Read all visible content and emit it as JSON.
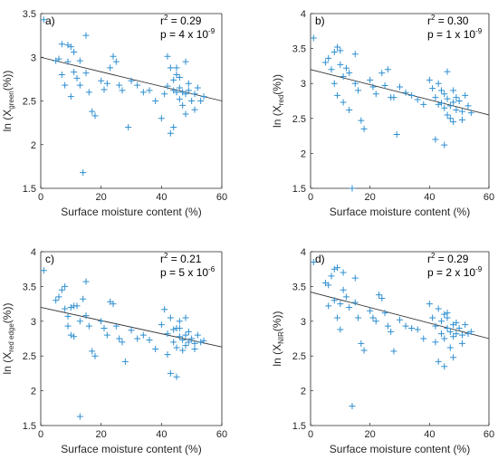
{
  "colors": {
    "marker": "#2f8fd0",
    "fit": "#333333",
    "axis": "#262626"
  },
  "chart_data": [
    {
      "type": "scatter",
      "panel_label": "a)",
      "xlabel": "Surface moisture content (%)",
      "ylabel_main": "ln (X",
      "ylabel_sub": "green",
      "ylabel_tail": "(%))",
      "xlim": [
        0,
        60
      ],
      "ylim": [
        1.5,
        3.5
      ],
      "xticks": [
        "0",
        "20",
        "40",
        "60"
      ],
      "yticks": [
        "1.5",
        "2",
        "2.5",
        "3",
        "3.5"
      ],
      "r2_label": "r",
      "r2_sup": "2",
      "r2_value": " = 0.29",
      "p_label": "p = 4 x 10",
      "p_exp": "-9",
      "fit": [
        [
          0,
          3.0
        ],
        [
          60,
          2.5
        ]
      ],
      "points": [
        [
          1,
          3.43
        ],
        [
          5,
          2.96
        ],
        [
          6,
          2.98
        ],
        [
          7,
          3.15
        ],
        [
          7,
          2.8
        ],
        [
          8,
          2.68
        ],
        [
          9,
          3.14
        ],
        [
          9,
          2.95
        ],
        [
          10,
          3.12
        ],
        [
          10,
          2.55
        ],
        [
          11,
          3.06
        ],
        [
          11,
          2.83
        ],
        [
          12,
          2.76
        ],
        [
          13,
          2.96
        ],
        [
          13,
          2.68
        ],
        [
          14,
          1.68
        ],
        [
          15,
          3.25
        ],
        [
          15,
          2.82
        ],
        [
          16,
          2.6
        ],
        [
          17,
          2.38
        ],
        [
          18,
          2.33
        ],
        [
          20,
          2.73
        ],
        [
          21,
          2.63
        ],
        [
          22,
          2.7
        ],
        [
          23,
          2.88
        ],
        [
          24,
          3.01
        ],
        [
          25,
          2.95
        ],
        [
          26,
          2.68
        ],
        [
          27,
          2.62
        ],
        [
          29,
          2.2
        ],
        [
          30,
          2.73
        ],
        [
          32,
          2.68
        ],
        [
          34,
          2.6
        ],
        [
          36,
          2.62
        ],
        [
          38,
          2.5
        ],
        [
          40,
          2.3
        ],
        [
          41,
          2.58
        ],
        [
          42,
          2.67
        ],
        [
          42,
          3.01
        ],
        [
          43,
          2.88
        ],
        [
          43,
          2.13
        ],
        [
          44,
          2.62
        ],
        [
          44,
          2.74
        ],
        [
          44,
          2.2
        ],
        [
          45,
          2.88
        ],
        [
          45,
          2.6
        ],
        [
          45,
          2.8
        ],
        [
          46,
          2.52
        ],
        [
          46,
          2.77
        ],
        [
          46,
          2.65
        ],
        [
          47,
          2.45
        ],
        [
          47,
          2.6
        ],
        [
          48,
          2.58
        ],
        [
          48,
          2.95
        ],
        [
          48,
          2.35
        ],
        [
          49,
          2.62
        ],
        [
          49,
          2.7
        ],
        [
          50,
          2.5
        ],
        [
          51,
          2.58
        ],
        [
          51,
          2.4
        ],
        [
          52,
          2.65
        ],
        [
          53,
          2.5
        ],
        [
          54,
          2.55
        ]
      ]
    },
    {
      "type": "scatter",
      "panel_label": "b)",
      "xlabel": "Surface moisture content (%)",
      "ylabel_main": "ln (X",
      "ylabel_sub": "red",
      "ylabel_tail": "(%))",
      "xlim": [
        0,
        60
      ],
      "ylim": [
        1.5,
        4.0
      ],
      "xticks": [
        "0",
        "20",
        "40",
        "60"
      ],
      "yticks": [
        "1.5",
        "2",
        "2.5",
        "3",
        "3.5",
        "4"
      ],
      "r2_label": "r",
      "r2_sup": "2",
      "r2_value": " = 0.30",
      "p_label": "p = 1 x 10",
      "p_exp": "-9",
      "fit": [
        [
          0,
          3.2
        ],
        [
          60,
          2.55
        ]
      ],
      "points": [
        [
          1,
          3.65
        ],
        [
          5,
          3.3
        ],
        [
          6,
          3.36
        ],
        [
          7,
          3.2
        ],
        [
          8,
          3.45
        ],
        [
          8,
          3.0
        ],
        [
          9,
          3.52
        ],
        [
          9,
          2.83
        ],
        [
          10,
          3.47
        ],
        [
          10,
          3.27
        ],
        [
          11,
          2.73
        ],
        [
          11,
          3.1
        ],
        [
          12,
          3.22
        ],
        [
          13,
          3.15
        ],
        [
          13,
          2.62
        ],
        [
          14,
          1.5
        ],
        [
          15,
          3.42
        ],
        [
          15,
          3.0
        ],
        [
          16,
          2.9
        ],
        [
          17,
          2.47
        ],
        [
          18,
          2.35
        ],
        [
          20,
          3.05
        ],
        [
          21,
          2.95
        ],
        [
          22,
          2.85
        ],
        [
          24,
          3.15
        ],
        [
          25,
          2.97
        ],
        [
          26,
          3.2
        ],
        [
          27,
          2.8
        ],
        [
          28,
          2.8
        ],
        [
          29,
          2.27
        ],
        [
          30,
          2.95
        ],
        [
          32,
          2.87
        ],
        [
          34,
          2.83
        ],
        [
          36,
          2.77
        ],
        [
          38,
          2.7
        ],
        [
          40,
          3.05
        ],
        [
          41,
          2.93
        ],
        [
          42,
          2.2
        ],
        [
          42,
          2.8
        ],
        [
          43,
          2.7
        ],
        [
          43,
          3.0
        ],
        [
          44,
          2.72
        ],
        [
          44,
          2.9
        ],
        [
          45,
          2.12
        ],
        [
          45,
          2.65
        ],
        [
          45,
          2.85
        ],
        [
          46,
          3.17
        ],
        [
          46,
          2.78
        ],
        [
          46,
          2.55
        ],
        [
          47,
          2.68
        ],
        [
          47,
          2.5
        ],
        [
          48,
          2.9
        ],
        [
          48,
          2.73
        ],
        [
          48,
          2.45
        ],
        [
          49,
          2.62
        ],
        [
          49,
          2.8
        ],
        [
          50,
          2.75
        ],
        [
          51,
          2.6
        ],
        [
          51,
          2.48
        ],
        [
          52,
          2.83
        ],
        [
          53,
          2.68
        ],
        [
          54,
          2.58
        ]
      ]
    },
    {
      "type": "scatter",
      "panel_label": "c)",
      "xlabel": "Surface moisture content (%)",
      "ylabel_main": "ln (X",
      "ylabel_sub": "red edge",
      "ylabel_tail": "(%))",
      "xlim": [
        0,
        60
      ],
      "ylim": [
        1.5,
        4.0
      ],
      "xticks": [
        "0",
        "20",
        "40",
        "60"
      ],
      "yticks": [
        "1.5",
        "2",
        "2.5",
        "3",
        "3.5",
        "4"
      ],
      "r2_label": "r",
      "r2_sup": "2",
      "r2_value": " = 0.21",
      "p_label": "p = 5 x 10",
      "p_exp": "-6",
      "fit": [
        [
          0,
          3.2
        ],
        [
          60,
          2.63
        ]
      ],
      "points": [
        [
          1,
          3.73
        ],
        [
          5,
          3.3
        ],
        [
          6,
          3.35
        ],
        [
          7,
          3.45
        ],
        [
          8,
          3.5
        ],
        [
          8,
          3.18
        ],
        [
          9,
          3.07
        ],
        [
          9,
          2.93
        ],
        [
          10,
          2.8
        ],
        [
          10,
          3.2
        ],
        [
          11,
          3.22
        ],
        [
          11,
          2.78
        ],
        [
          12,
          3.22
        ],
        [
          13,
          3.0
        ],
        [
          13,
          1.63
        ],
        [
          14,
          3.32
        ],
        [
          15,
          3.57
        ],
        [
          15,
          3.08
        ],
        [
          16,
          2.93
        ],
        [
          17,
          2.57
        ],
        [
          18,
          2.5
        ],
        [
          20,
          3.0
        ],
        [
          21,
          2.9
        ],
        [
          22,
          2.8
        ],
        [
          23,
          3.28
        ],
        [
          24,
          3.25
        ],
        [
          25,
          2.93
        ],
        [
          26,
          2.75
        ],
        [
          27,
          2.7
        ],
        [
          28,
          2.42
        ],
        [
          30,
          2.87
        ],
        [
          32,
          2.75
        ],
        [
          34,
          2.8
        ],
        [
          36,
          2.73
        ],
        [
          38,
          2.6
        ],
        [
          40,
          2.95
        ],
        [
          41,
          3.17
        ],
        [
          42,
          2.52
        ],
        [
          42,
          2.82
        ],
        [
          43,
          3.05
        ],
        [
          43,
          2.25
        ],
        [
          44,
          2.7
        ],
        [
          44,
          2.88
        ],
        [
          45,
          2.2
        ],
        [
          45,
          2.9
        ],
        [
          45,
          2.62
        ],
        [
          46,
          3.0
        ],
        [
          46,
          2.78
        ],
        [
          46,
          2.9
        ],
        [
          47,
          2.73
        ],
        [
          47,
          2.58
        ],
        [
          48,
          2.8
        ],
        [
          48,
          2.65
        ],
        [
          48,
          3.05
        ],
        [
          49,
          2.7
        ],
        [
          49,
          2.85
        ],
        [
          50,
          2.75
        ],
        [
          51,
          2.68
        ],
        [
          51,
          2.6
        ],
        [
          52,
          2.8
        ],
        [
          53,
          2.7
        ],
        [
          54,
          2.72
        ]
      ]
    },
    {
      "type": "scatter",
      "panel_label": "d)",
      "xlabel": "Surface moisture content (%)",
      "ylabel_main": "ln (X",
      "ylabel_sub": "NIR",
      "ylabel_tail": "(%))",
      "xlim": [
        0,
        60
      ],
      "ylim": [
        1.5,
        4.0
      ],
      "xticks": [
        "0",
        "20",
        "40",
        "60"
      ],
      "yticks": [
        "1.5",
        "2",
        "2.5",
        "3",
        "3.5",
        "4"
      ],
      "r2_label": "r",
      "r2_sup": "2",
      "r2_value": " = 0.29",
      "p_label": "p = 2 x 10",
      "p_exp": "-9",
      "fit": [
        [
          0,
          3.42
        ],
        [
          60,
          2.75
        ]
      ],
      "points": [
        [
          1,
          3.85
        ],
        [
          5,
          3.55
        ],
        [
          6,
          3.52
        ],
        [
          6,
          3.22
        ],
        [
          7,
          3.65
        ],
        [
          8,
          3.75
        ],
        [
          8,
          3.3
        ],
        [
          9,
          3.77
        ],
        [
          9,
          3.05
        ],
        [
          10,
          2.88
        ],
        [
          10,
          3.25
        ],
        [
          11,
          3.7
        ],
        [
          11,
          3.45
        ],
        [
          12,
          3.35
        ],
        [
          13,
          3.2
        ],
        [
          14,
          1.78
        ],
        [
          15,
          3.62
        ],
        [
          15,
          3.27
        ],
        [
          16,
          3.05
        ],
        [
          17,
          2.68
        ],
        [
          18,
          2.58
        ],
        [
          20,
          3.15
        ],
        [
          21,
          3.05
        ],
        [
          22,
          3.0
        ],
        [
          23,
          3.38
        ],
        [
          24,
          3.33
        ],
        [
          25,
          3.12
        ],
        [
          26,
          2.93
        ],
        [
          27,
          2.85
        ],
        [
          28,
          2.57
        ],
        [
          30,
          3.02
        ],
        [
          32,
          2.93
        ],
        [
          34,
          2.9
        ],
        [
          36,
          2.88
        ],
        [
          38,
          2.75
        ],
        [
          40,
          3.25
        ],
        [
          41,
          3.05
        ],
        [
          42,
          2.7
        ],
        [
          42,
          2.93
        ],
        [
          43,
          3.18
        ],
        [
          43,
          2.42
        ],
        [
          44,
          2.82
        ],
        [
          44,
          3.0
        ],
        [
          45,
          2.35
        ],
        [
          45,
          3.1
        ],
        [
          45,
          2.75
        ],
        [
          46,
          3.12
        ],
        [
          46,
          2.9
        ],
        [
          46,
          3.05
        ],
        [
          47,
          2.85
        ],
        [
          47,
          2.62
        ],
        [
          48,
          2.95
        ],
        [
          48,
          2.78
        ],
        [
          48,
          2.48
        ],
        [
          49,
          2.82
        ],
        [
          49,
          2.98
        ],
        [
          50,
          2.9
        ],
        [
          51,
          2.8
        ],
        [
          51,
          2.68
        ],
        [
          52,
          2.95
        ],
        [
          53,
          2.82
        ],
        [
          54,
          2.85
        ]
      ]
    }
  ]
}
